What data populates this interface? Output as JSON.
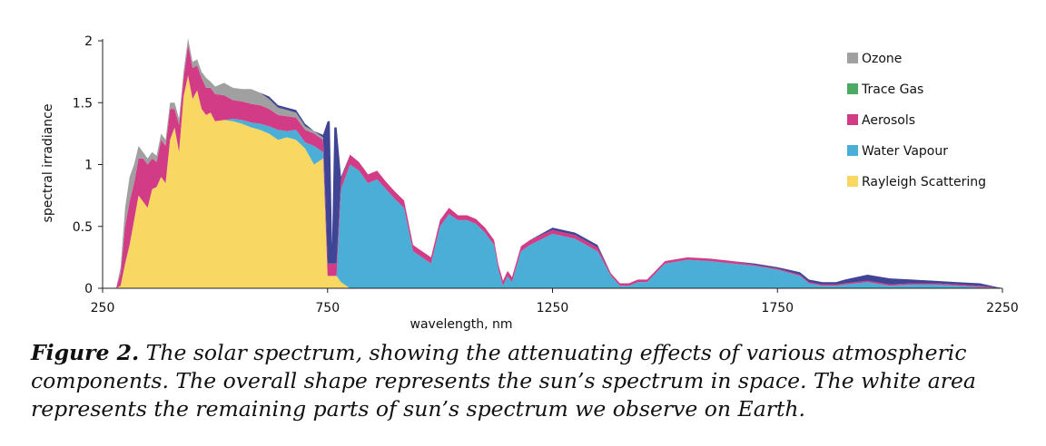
{
  "chart_data": {
    "type": "area",
    "title": "",
    "xlabel": "wavelength, nm",
    "ylabel": "spectral irradiance",
    "xlim": [
      250,
      2250
    ],
    "ylim": [
      0,
      2
    ],
    "xticks": [
      250,
      750,
      1250,
      1750,
      2250
    ],
    "yticks": [
      0,
      0.5,
      1,
      1.5,
      2
    ],
    "ytick_labels": [
      "0",
      "0.5",
      "1",
      "1.5",
      "2"
    ],
    "legend_position": "top-right",
    "x": [
      280,
      290,
      300,
      310,
      320,
      330,
      340,
      350,
      360,
      370,
      380,
      390,
      400,
      410,
      420,
      430,
      440,
      450,
      460,
      470,
      480,
      490,
      500,
      520,
      540,
      560,
      580,
      600,
      620,
      640,
      660,
      680,
      700,
      720,
      740,
      750,
      755,
      760,
      765,
      770,
      780,
      800,
      820,
      840,
      860,
      880,
      900,
      920,
      940,
      960,
      980,
      1000,
      1020,
      1040,
      1060,
      1080,
      1100,
      1120,
      1130,
      1140,
      1150,
      1160,
      1180,
      1200,
      1250,
      1300,
      1350,
      1380,
      1400,
      1420,
      1440,
      1460,
      1500,
      1550,
      1600,
      1650,
      1700,
      1750,
      1800,
      1820,
      1850,
      1880,
      1900,
      1950,
      2000,
      2050,
      2100,
      2150,
      2200,
      2250
    ],
    "series": [
      {
        "name": "Rayleigh Scattering",
        "color": "#F8D863",
        "values": [
          0,
          0.02,
          0.2,
          0.35,
          0.55,
          0.75,
          0.7,
          0.65,
          0.8,
          0.82,
          0.9,
          0.85,
          1.2,
          1.3,
          1.1,
          1.55,
          1.72,
          1.53,
          1.6,
          1.45,
          1.4,
          1.42,
          1.35,
          1.36,
          1.35,
          1.33,
          1.3,
          1.28,
          1.25,
          1.2,
          1.22,
          1.2,
          1.13,
          1.0,
          1.05,
          0.1,
          0.1,
          0.1,
          0.1,
          0.1,
          0.05,
          0,
          0,
          0,
          0,
          0,
          0,
          0,
          0,
          0,
          0,
          0,
          0,
          0,
          0,
          0,
          0,
          0,
          0,
          0,
          0,
          0,
          0,
          0,
          0,
          0,
          0,
          0,
          0,
          0,
          0,
          0,
          0,
          0,
          0,
          0,
          0,
          0,
          0,
          0,
          0,
          0,
          0,
          0,
          0,
          0,
          0,
          0,
          0,
          0
        ]
      },
      {
        "name": "Water Vapour",
        "color": "#4BAED6",
        "values": [
          0,
          0,
          0,
          0,
          0,
          0,
          0,
          0,
          0,
          0,
          0,
          0,
          0,
          0,
          0,
          0,
          0,
          0,
          0,
          0,
          0,
          0,
          0,
          0,
          0.02,
          0.03,
          0.04,
          0.05,
          0.06,
          0.08,
          0.05,
          0.08,
          0.05,
          0.15,
          0.05,
          0,
          0,
          0,
          0,
          0,
          0.75,
          1.0,
          0.95,
          0.85,
          0.88,
          0.8,
          0.72,
          0.65,
          0.3,
          0.25,
          0.2,
          0.5,
          0.6,
          0.55,
          0.55,
          0.52,
          0.45,
          0.35,
          0.15,
          0.02,
          0.1,
          0.05,
          0.3,
          0.35,
          0.44,
          0.4,
          0.3,
          0.1,
          0.02,
          0.02,
          0.05,
          0.05,
          0.2,
          0.23,
          0.22,
          0.2,
          0.18,
          0.15,
          0.1,
          0.04,
          0.02,
          0.02,
          0.03,
          0.05,
          0.02,
          0.03,
          0.03,
          0.02,
          0.01,
          0
        ]
      },
      {
        "name": "Trace Gas",
        "color": "#4DAA63",
        "values": [
          0,
          0,
          0,
          0,
          0,
          0,
          0,
          0,
          0,
          0,
          0,
          0,
          0,
          0,
          0,
          0,
          0,
          0,
          0,
          0,
          0,
          0,
          0,
          0,
          0,
          0,
          0,
          0,
          0,
          0,
          0,
          0,
          0,
          0,
          0,
          0,
          0,
          0,
          0,
          0,
          0,
          0,
          0,
          0,
          0,
          0,
          0,
          0,
          0,
          0,
          0,
          0,
          0,
          0,
          0,
          0,
          0,
          0,
          0,
          0,
          0,
          0,
          0,
          0,
          0,
          0,
          0,
          0,
          0,
          0,
          0,
          0,
          0,
          0,
          0,
          0,
          0,
          0,
          0,
          0,
          0,
          0,
          0,
          0,
          0,
          0,
          0,
          0,
          0,
          0
        ]
      },
      {
        "name": "Aerosols",
        "color": "#D23C86",
        "values": [
          0,
          0.1,
          0.3,
          0.35,
          0.3,
          0.3,
          0.35,
          0.35,
          0.25,
          0.2,
          0.3,
          0.3,
          0.25,
          0.15,
          0.22,
          0.15,
          0.25,
          0.25,
          0.2,
          0.25,
          0.22,
          0.2,
          0.22,
          0.2,
          0.15,
          0.15,
          0.15,
          0.15,
          0.14,
          0.12,
          0.12,
          0.1,
          0.1,
          0.1,
          0.1,
          0.1,
          0.1,
          0.1,
          0.1,
          0.1,
          0.08,
          0.08,
          0.07,
          0.07,
          0.07,
          0.06,
          0.06,
          0.06,
          0.05,
          0.05,
          0.05,
          0.05,
          0.05,
          0.04,
          0.04,
          0.04,
          0.04,
          0.04,
          0.04,
          0.04,
          0.04,
          0.04,
          0.04,
          0.04,
          0.03,
          0.03,
          0.03,
          0.02,
          0.02,
          0.02,
          0.02,
          0.02,
          0.02,
          0.02,
          0.02,
          0.02,
          0.01,
          0.01,
          0.01,
          0.01,
          0.01,
          0.01,
          0.01,
          0.01,
          0.01,
          0.01,
          0.01,
          0.01,
          0.01,
          0
        ]
      },
      {
        "name": "Ozone",
        "color": "#A0A0A0",
        "values": [
          0,
          0.05,
          0.15,
          0.2,
          0.15,
          0.1,
          0.05,
          0.05,
          0.05,
          0.05,
          0.05,
          0.05,
          0.05,
          0.05,
          0.05,
          0.05,
          0.05,
          0.05,
          0.05,
          0.05,
          0.08,
          0.05,
          0.06,
          0.1,
          0.1,
          0.1,
          0.12,
          0.1,
          0.08,
          0.06,
          0.05,
          0.04,
          0.03,
          0.02,
          0.02,
          0,
          0,
          0,
          0,
          0,
          0,
          0,
          0,
          0,
          0,
          0,
          0,
          0,
          0,
          0,
          0,
          0,
          0,
          0,
          0,
          0,
          0,
          0,
          0,
          0,
          0,
          0,
          0,
          0,
          0,
          0,
          0,
          0,
          0,
          0,
          0,
          0,
          0,
          0,
          0,
          0,
          0,
          0,
          0,
          0,
          0,
          0,
          0,
          0,
          0,
          0,
          0,
          0,
          0,
          0
        ]
      },
      {
        "name": "",
        "color": "#404494",
        "values": [
          0,
          0,
          0,
          0,
          0,
          0,
          0,
          0,
          0,
          0,
          0,
          0,
          0,
          0,
          0,
          0,
          0,
          0,
          0,
          0,
          0,
          0,
          0,
          0,
          0,
          0,
          0,
          0,
          0.02,
          0.02,
          0.02,
          0.02,
          0.02,
          0,
          0.02,
          1.15,
          1.15,
          0.15,
          1.1,
          1.1,
          0.02,
          0,
          0,
          0,
          0,
          0,
          0,
          0,
          0,
          0,
          0,
          0,
          0,
          0,
          0,
          0,
          0,
          0,
          0,
          0,
          0,
          0,
          0,
          0,
          0.02,
          0.02,
          0.02,
          0,
          0,
          0,
          0,
          0,
          0,
          0,
          0,
          0,
          0.01,
          0.01,
          0.02,
          0.02,
          0.02,
          0.02,
          0.03,
          0.05,
          0.05,
          0.03,
          0.02,
          0.02,
          0.02,
          0
        ]
      }
    ],
    "total": [
      0,
      0.17,
      0.65,
      0.9,
      1.0,
      1.15,
      1.1,
      1.05,
      1.1,
      1.07,
      1.25,
      1.2,
      1.5,
      1.5,
      1.37,
      1.75,
      2.02,
      1.83,
      1.85,
      1.75,
      1.7,
      1.67,
      1.63,
      1.58,
      1.5,
      1.43,
      1.42,
      1.38,
      1.33,
      1.3,
      1.28,
      1.25,
      1.22,
      1.2,
      1.17,
      1.2,
      1.2,
      1.2,
      1.2,
      1.2,
      1.15,
      1.08,
      1.02,
      0.92,
      0.95,
      0.86,
      0.78,
      0.71,
      0.65,
      0.61,
      0.57,
      0.55,
      0.53,
      0.5,
      0.48,
      0.46,
      0.45,
      0.42,
      0.42,
      0.41,
      0.4,
      0.39,
      0.37,
      0.35,
      0.31,
      0.27,
      0.26,
      0.25,
      0.24,
      0.23,
      0.22,
      0.21,
      0.19,
      0.17,
      0.16,
      0.15,
      0.13,
      0.12,
      0.11,
      0.1,
      0.1,
      0.09,
      0.09,
      0.08,
      0.08,
      0.08,
      0.07,
      0.07,
      0.07,
      0.06
    ]
  },
  "legend": [
    {
      "label": "Ozone",
      "color": "#A0A0A0"
    },
    {
      "label": "Trace Gas",
      "color": "#4DAA63"
    },
    {
      "label": "Aerosols",
      "color": "#D23C86"
    },
    {
      "label": "Water Vapour",
      "color": "#4BAED6"
    },
    {
      "label": "Rayleigh Scattering",
      "color": "#F8D863"
    }
  ],
  "caption": {
    "label": "Figure 2.",
    "text": "The solar spectrum, showing the attenuating effects of various atmospheric components. The overall shape represents the sun’s spectrum in space. The white area represents the remaining parts of sun’s spectrum we observe on Earth."
  }
}
